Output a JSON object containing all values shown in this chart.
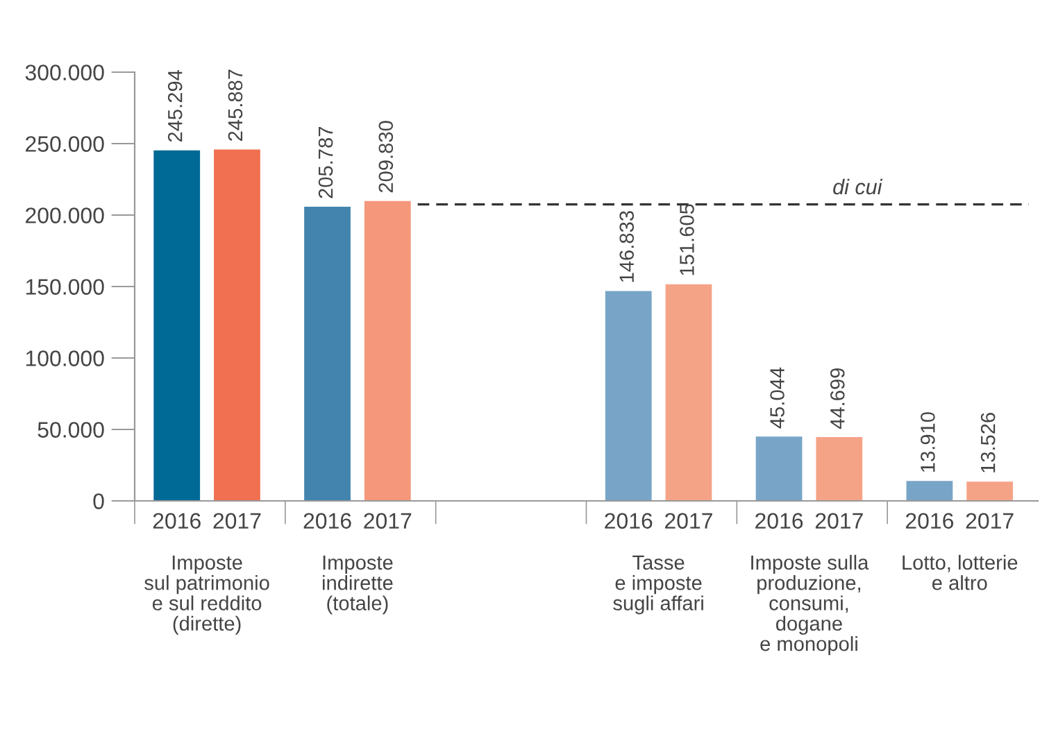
{
  "chart_data": {
    "type": "bar",
    "categories": [
      "2016",
      "2017",
      "2016",
      "2017",
      null,
      null,
      "2016",
      "2017",
      "2016",
      "2017",
      "2016",
      "2017"
    ],
    "values": [
      245294,
      245887,
      205787,
      209830,
      null,
      null,
      146833,
      151605,
      45044,
      44699,
      13910,
      13526
    ],
    "value_labels": [
      "245.294",
      "245.887",
      "205.787",
      "209.830",
      null,
      null,
      "146.833",
      "151.605",
      "45.044",
      "44.699",
      "13.910",
      "13.526"
    ],
    "colors": [
      "#006a96",
      "#f07051",
      "#4284ae",
      "#f5977a",
      null,
      null,
      "#78a5c7",
      "#f5a387",
      "#78a5c7",
      "#f5a387",
      "#78a5c7",
      "#f5a387"
    ],
    "annotations": [
      "Imposte\nsul patrimonio\ne sul reddito\n(dirette)",
      "Imposte\nindirette\n(totale)",
      "Tasse\ne imposte\nsugli affari",
      "Imposte sulla\nproduzione,\nconsumi,\ndogane\ne monopoli",
      "Lotto, lotterie\ne altro"
    ],
    "ref_lines": [
      {
        "axis": "y",
        "value": 207500,
        "label": "di cui",
        "line_style": "dashed",
        "color": "#333333"
      }
    ],
    "ylim": [
      0,
      300000
    ],
    "yticks": [
      {
        "value": 0,
        "label": "0"
      },
      {
        "value": 50000,
        "label": "50.000"
      },
      {
        "value": 100000,
        "label": "100.000"
      },
      {
        "value": 150000,
        "label": "150.000"
      },
      {
        "value": 200000,
        "label": "200.000"
      },
      {
        "value": 250000,
        "label": "250.000"
      },
      {
        "value": 300000,
        "label": "300.000"
      }
    ],
    "grid": false
  }
}
